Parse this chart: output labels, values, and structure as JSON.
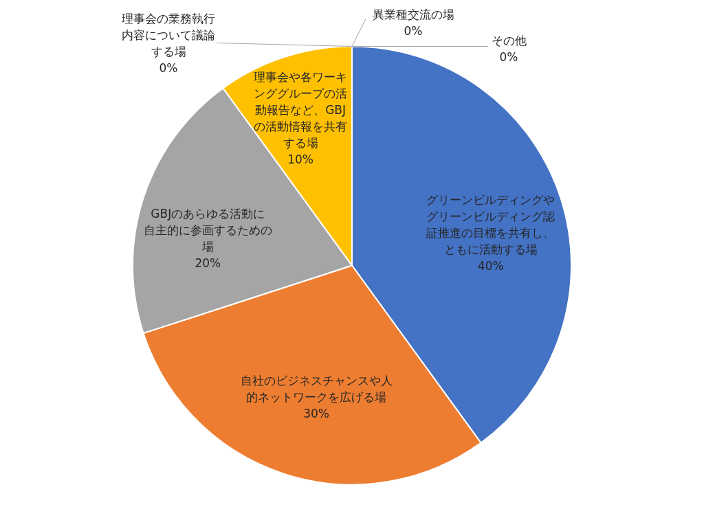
{
  "chart_data": {
    "type": "pie",
    "categories": [
      "グリーンビルディングやグリーンビルディング認証推進の目標を共有し、ともに活動する場",
      "自社のビジネスチャンスや人的ネットワークを広げる場",
      "GBJのあらゆる活動に自主的に参画するための場",
      "理事会や各ワーキンググループの活動報告など、GBJの活動情報を共有する場",
      "理事会の業務執行内容について議論する場",
      "異業種交流の場",
      "その他"
    ],
    "values": [
      40,
      30,
      20,
      10,
      0,
      0,
      0
    ],
    "colors": [
      "#4472c4",
      "#ed7d31",
      "#a5a5a5",
      "#ffc000",
      null,
      null,
      null
    ],
    "value_labels": [
      "40%",
      "30%",
      "20%",
      "10%",
      "0%",
      "0%",
      "0%"
    ]
  }
}
